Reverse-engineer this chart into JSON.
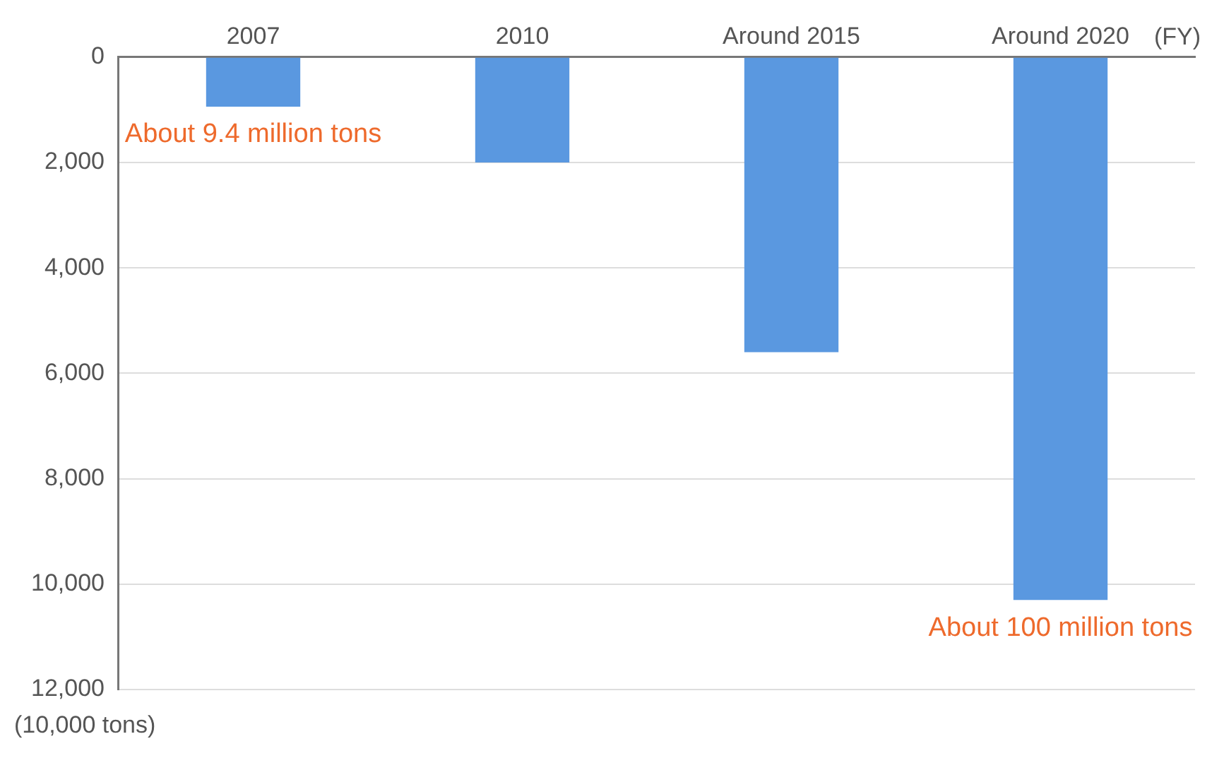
{
  "chart_data": {
    "type": "bar",
    "xlabel": "(FY)",
    "ylabel": "(10,000 tons)",
    "categories": [
      "2007",
      "2010",
      "Around 2015",
      "Around 2020"
    ],
    "values": [
      940,
      2000,
      5600,
      10300
    ],
    "color": "#5a98e0",
    "ylim": [
      12000,
      0
    ],
    "yticks": [
      0,
      {
        "value": 2000,
        "label": "2,000"
      },
      {
        "value": 4000,
        "label": "4,000"
      },
      {
        "value": 6000,
        "label": "6,000"
      },
      {
        "value": 8000,
        "label": "8,000"
      },
      {
        "value": 10000,
        "label": "10,000"
      },
      {
        "value": 12000,
        "label": "12,000"
      }
    ],
    "grid": "y",
    "annotations": [
      {
        "text": "About 9.4 million tons",
        "x": "2007",
        "y": 940
      },
      {
        "text": "About 100 million tons",
        "x": "Around 2020",
        "y": 10300
      }
    ]
  }
}
